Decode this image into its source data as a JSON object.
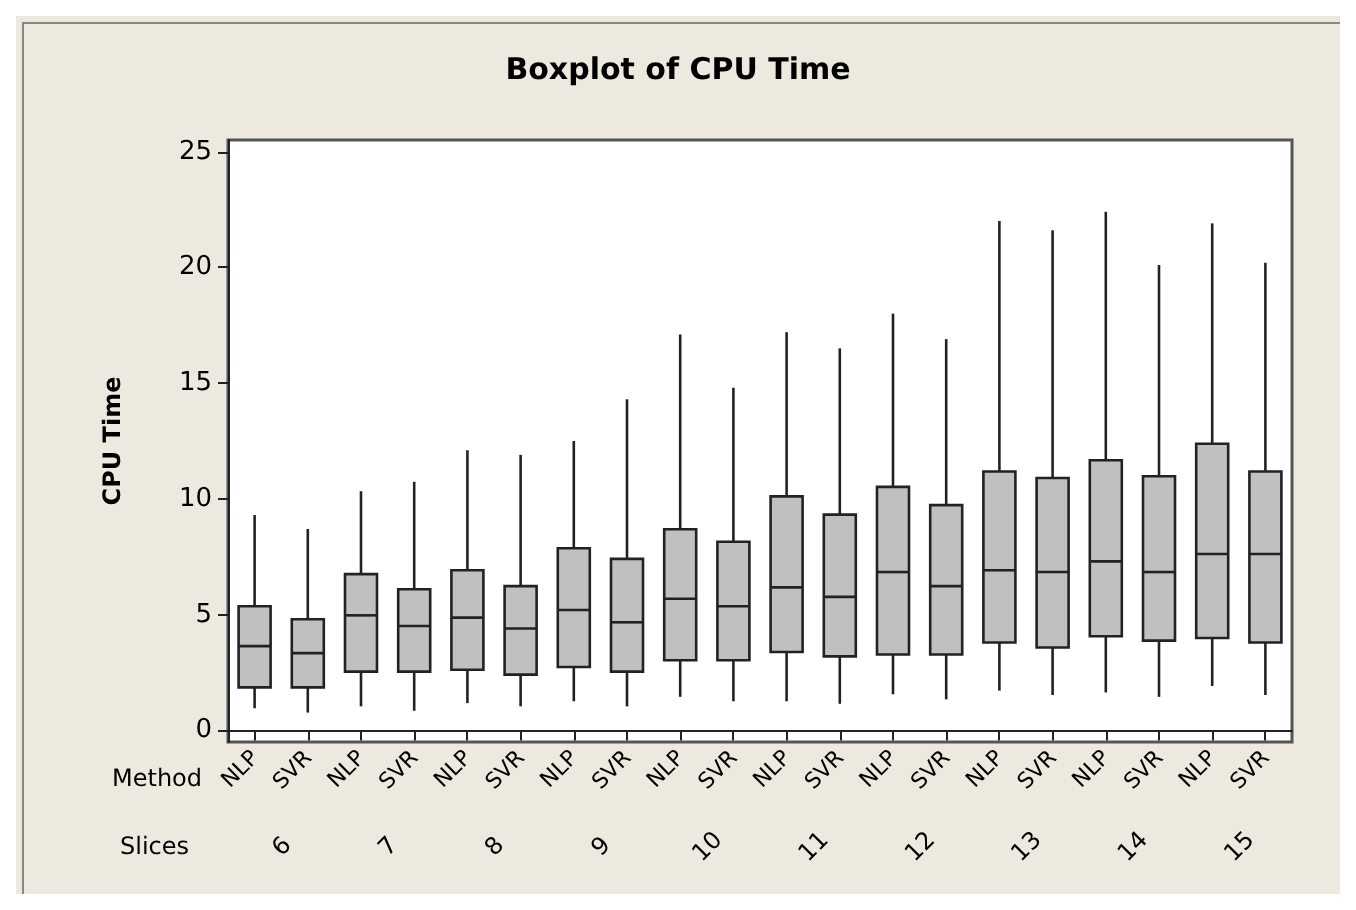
{
  "chart_data": {
    "type": "box",
    "title": "Boxplot of CPU Time",
    "ylabel": "CPU Time",
    "categories": [
      "NLP",
      "SVR",
      "NLP",
      "SVR",
      "NLP",
      "SVR",
      "NLP",
      "SVR",
      "NLP",
      "SVR",
      "NLP",
      "SVR",
      "NLP",
      "SVR",
      "NLP",
      "SVR",
      "NLP",
      "SVR",
      "NLP",
      "SVR"
    ],
    "annotations": [
      "Method",
      "Slices",
      "6",
      "7",
      "8",
      "9",
      "10",
      "11",
      "12",
      "13",
      "14",
      "15"
    ],
    "color": "#c0c0c0",
    "boxes": [
      {
        "low": 0.96,
        "q1": 1.86,
        "median": 3.64,
        "q3": 5.36,
        "high": 9.3
      },
      {
        "low": 0.77,
        "q1": 1.86,
        "median": 3.34,
        "q3": 4.8,
        "high": 8.7
      },
      {
        "low": 1.04,
        "q1": 2.54,
        "median": 4.97,
        "q3": 6.75,
        "high": 10.33
      },
      {
        "low": 0.85,
        "q1": 2.54,
        "median": 4.51,
        "q3": 6.1,
        "high": 10.74
      },
      {
        "low": 1.18,
        "q1": 2.62,
        "median": 4.87,
        "q3": 6.92,
        "high": 12.1
      },
      {
        "low": 1.04,
        "q1": 2.41,
        "median": 4.4,
        "q3": 6.23,
        "high": 11.9
      },
      {
        "low": 1.26,
        "q1": 2.74,
        "median": 5.2,
        "q3": 7.87,
        "high": 12.5
      },
      {
        "low": 1.04,
        "q1": 2.54,
        "median": 4.67,
        "q3": 7.41,
        "high": 14.3
      },
      {
        "low": 1.45,
        "q1": 3.03,
        "median": 5.69,
        "q3": 8.69,
        "high": 17.1
      },
      {
        "low": 1.26,
        "q1": 3.03,
        "median": 5.36,
        "q3": 8.15,
        "high": 14.8
      },
      {
        "low": 1.26,
        "q1": 3.39,
        "median": 6.18,
        "q3": 10.11,
        "high": 17.2
      },
      {
        "low": 1.15,
        "q1": 3.2,
        "median": 5.77,
        "q3": 9.32,
        "high": 16.5
      },
      {
        "low": 1.56,
        "q1": 3.28,
        "median": 6.84,
        "q3": 10.52,
        "high": 18.0
      },
      {
        "low": 1.34,
        "q1": 3.28,
        "median": 6.23,
        "q3": 9.73,
        "high": 16.9
      },
      {
        "low": 1.72,
        "q1": 3.8,
        "median": 6.92,
        "q3": 11.18,
        "high": 22.0
      },
      {
        "low": 1.53,
        "q1": 3.58,
        "median": 6.84,
        "q3": 10.9,
        "high": 21.6
      },
      {
        "low": 1.64,
        "q1": 4.07,
        "median": 7.3,
        "q3": 11.67,
        "high": 22.4
      },
      {
        "low": 1.45,
        "q1": 3.88,
        "median": 6.84,
        "q3": 10.98,
        "high": 20.1
      },
      {
        "low": 1.92,
        "q1": 3.99,
        "median": 7.62,
        "q3": 12.38,
        "high": 21.9
      },
      {
        "low": 1.53,
        "q1": 3.8,
        "median": 7.62,
        "q3": 11.18,
        "high": 20.2
      }
    ],
    "ylim": [
      -0.5,
      25.5
    ],
    "yticks": [
      0,
      5,
      10,
      15,
      20,
      25
    ]
  }
}
